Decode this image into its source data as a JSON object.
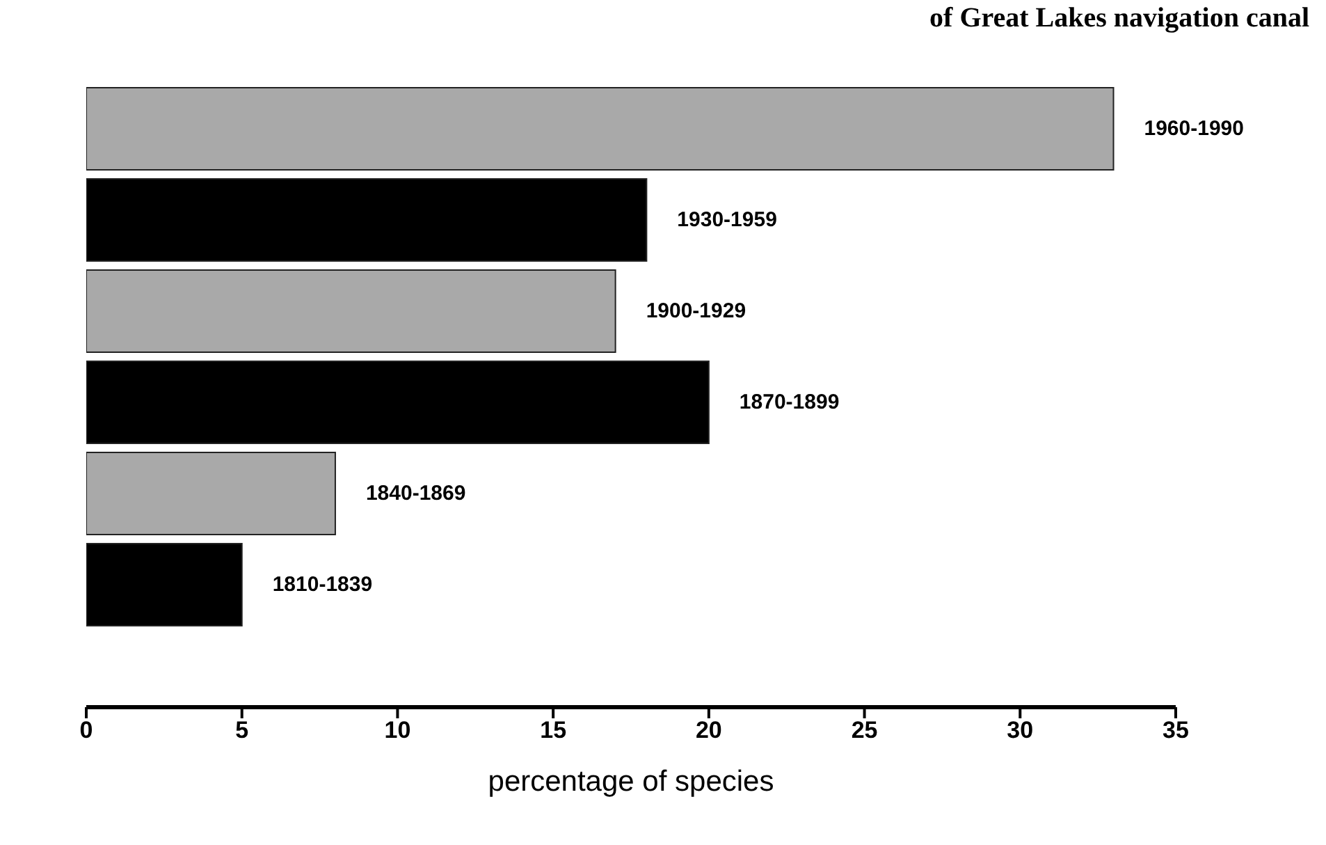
{
  "chart_data": {
    "type": "bar",
    "orientation": "horizontal",
    "title": "of Great Lakes navigation canal",
    "xlabel": "percentage of species",
    "categories": [
      "1960-1990",
      "1930-1959",
      "1900-1929",
      "1870-1899",
      "1840-1869",
      "1810-1839"
    ],
    "values": [
      33,
      18,
      17,
      20,
      8,
      5
    ],
    "colors": [
      "#a9a9a9",
      "#000000",
      "#a9a9a9",
      "#000000",
      "#a9a9a9",
      "#000000"
    ],
    "xlim": [
      0,
      35
    ],
    "xticks": [
      0,
      5,
      10,
      15,
      20,
      25,
      30,
      35
    ],
    "tick_labels": "x",
    "grid": false,
    "legend": false
  }
}
